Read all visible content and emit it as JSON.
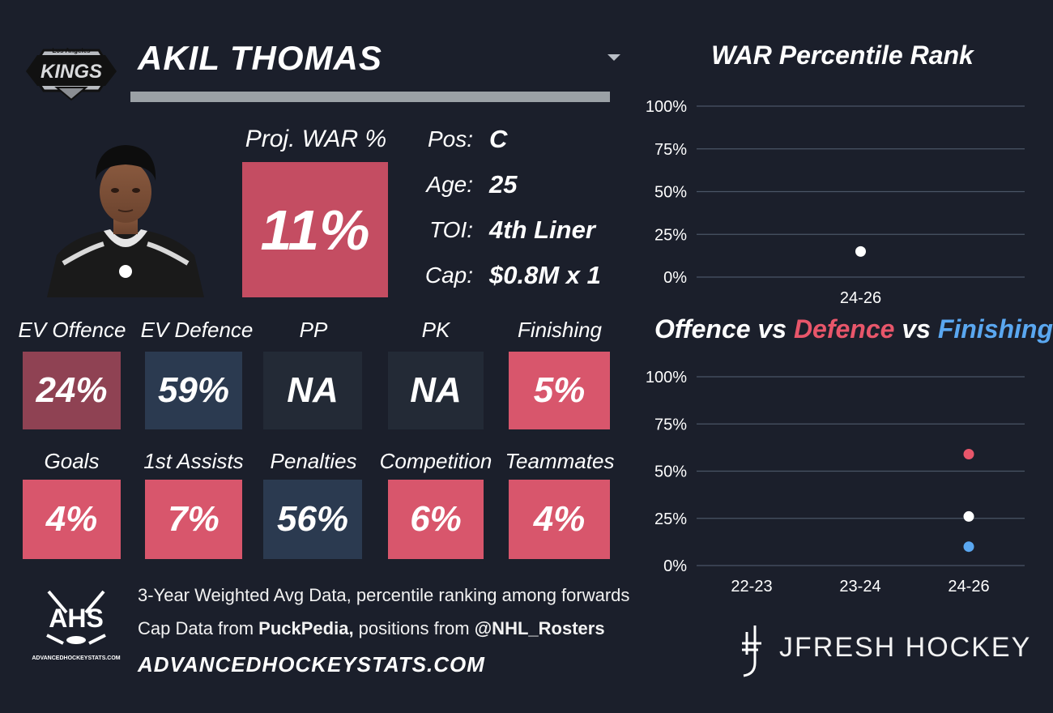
{
  "header": {
    "team_logo_text_top": "Los Angeles",
    "team_logo_text": "KINGS",
    "player_name": "AKIL THOMAS"
  },
  "projection": {
    "label": "Proj. WAR %",
    "value": "11%"
  },
  "info": [
    {
      "label": "Pos:",
      "value": "C"
    },
    {
      "label": "Age:",
      "value": "25"
    },
    {
      "label": "TOI:",
      "value": "4th Liner"
    },
    {
      "label": "Cap:",
      "value": "$0.8M x 1"
    }
  ],
  "stats_row1": [
    {
      "label": "EV Offence",
      "value": "24%",
      "color": "#8f4253"
    },
    {
      "label": "EV Defence",
      "value": "59%",
      "color": "#2b3a50"
    },
    {
      "label": "PP",
      "value": "NA",
      "color": "#232a36"
    },
    {
      "label": "PK",
      "value": "NA",
      "color": "#232a36"
    },
    {
      "label": "Finishing",
      "value": "5%",
      "color": "#d8566c"
    }
  ],
  "stats_row2": [
    {
      "label": "Goals",
      "value": "4%",
      "color": "#d8566c"
    },
    {
      "label": "1st Assists",
      "value": "7%",
      "color": "#d8566c"
    },
    {
      "label": "Penalties",
      "value": "56%",
      "color": "#2b3a50"
    },
    {
      "label": "Competition",
      "value": "6%",
      "color": "#d8566c"
    },
    {
      "label": "Teammates",
      "value": "4%",
      "color": "#d8566c"
    }
  ],
  "footer": {
    "ahs_logo_text": "AHS",
    "ahs_logo_sub": "ADVANCEDHOCKEYSTATS.COM",
    "line1": "3-Year Weighted Avg Data, percentile ranking among forwards",
    "line2_prefix": "Cap Data from ",
    "line2_bold1": "PuckPedia,",
    "line2_middle": " positions from ",
    "line2_bold2": "@NHL_Rosters",
    "url": "ADVANCEDHOCKEYSTATS.COM",
    "brand": "JFRESH HOCKEY"
  },
  "colors": {
    "background": "#1b1f2b",
    "offence": "#ffffff",
    "defence": "#e8566a",
    "finishing": "#5aa7f0",
    "gridline": "#4a5566"
  },
  "chart_data": [
    {
      "type": "scatter",
      "title": "WAR Percentile Rank",
      "categories": [
        "24-26"
      ],
      "series": [
        {
          "values": [
            15
          ],
          "color": "#ffffff"
        }
      ],
      "ylim": [
        0,
        100
      ],
      "yticks": [
        "0%",
        "25%",
        "50%",
        "75%",
        "100%"
      ],
      "grid": true
    },
    {
      "type": "scatter",
      "title_parts": [
        "Offence",
        " vs ",
        "Defence",
        " vs ",
        "Finishing"
      ],
      "categories": [
        "22-23",
        "23-24",
        "24-26"
      ],
      "series": [
        {
          "name": "Offence",
          "values": [
            null,
            null,
            26
          ],
          "color": "#ffffff"
        },
        {
          "name": "Defence",
          "values": [
            null,
            null,
            59
          ],
          "color": "#e8566a"
        },
        {
          "name": "Finishing",
          "values": [
            null,
            null,
            10
          ],
          "color": "#5aa7f0"
        }
      ],
      "ylim": [
        0,
        100
      ],
      "yticks": [
        "0%",
        "25%",
        "50%",
        "75%",
        "100%"
      ],
      "grid": true
    }
  ]
}
